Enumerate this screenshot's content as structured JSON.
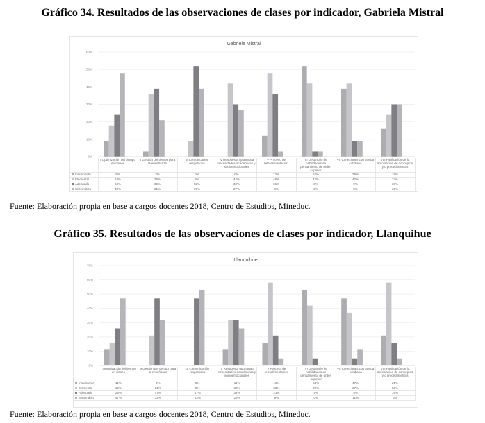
{
  "document": {
    "chart34_title": "Gráfico 34. Resultados de las observaciones de clases por indicador, Gabriela Mistral",
    "chart34_source": "Fuente: Elaboración propia en base a cargos docentes 2018, Centro de Estudios, Mineduc.",
    "chart35_title": "Gráfico 35. Resultados de las observaciones de clases por indicador, Llanquihue",
    "chart35_source": "Fuente: Elaboración propia en base a cargos docentes 2018, Centro de Estudios, Mineduc."
  },
  "chart_data": [
    {
      "type": "bar",
      "title": "Gabriela Mistral",
      "ylim": [
        0,
        60
      ],
      "yticks": [
        "0%",
        "10%",
        "20%",
        "30%",
        "40%",
        "50%",
        "60%"
      ],
      "grid": true,
      "legend": "data-table",
      "categories": [
        "I Optimización del tiempo en clases",
        "II Gestión del tiempo para la enseñanza",
        "III Comunicación respetuosa",
        "IV Respuesta oportuna a necesidades académicas y socioemocionales",
        "V Proceso de retroalimentación",
        "VI Desarrollo de habilidades de pensamiento de orden superior",
        "VII Conexiones con la vida cotidiana",
        "VIII Facilitación de la apropiación de conceptos y/o procedimientos"
      ],
      "series": [
        {
          "name": "Insuficiente",
          "color": "#adadb1",
          "values": [
            9,
            3,
            0,
            0,
            12,
            52,
            39,
            16
          ]
        },
        {
          "name": "Elemental",
          "color": "#c6c6ca",
          "values": [
            18,
            36,
            9,
            42,
            48,
            42,
            42,
            24
          ]
        },
        {
          "name": "Adecuado",
          "color": "#7f7f83",
          "values": [
            24,
            39,
            52,
            30,
            36,
            3,
            9,
            30
          ]
        },
        {
          "name": "Sistemático",
          "color": "#b5b5b9",
          "values": [
            48,
            21,
            39,
            27,
            3,
            3,
            9,
            30
          ]
        }
      ]
    },
    {
      "type": "bar",
      "title": "Llanquihue",
      "ylim": [
        0,
        70
      ],
      "yticks": [
        "0%",
        "10%",
        "20%",
        "30%",
        "40%",
        "50%",
        "60%",
        "70%"
      ],
      "grid": true,
      "legend": "data-table",
      "categories": [
        "I Optimización del tiempo en clases",
        "II Gestión del tiempo para la enseñanza",
        "III Comunicación respetuosa",
        "IV Respuesta oportuna a necesidades académicas y socioemocionales",
        "V Proceso de retroalimentación",
        "VI Desarrollo de habilidades de pensamiento de orden superior",
        "VII Conexiones con la vida cotidiana",
        "VIII Facilitación de la apropiación de conceptos y/o procedimientos"
      ],
      "series": [
        {
          "name": "Insuficiente",
          "color": "#adadb1",
          "values": [
            11,
            0,
            0,
            11,
            16,
            53,
            47,
            21
          ]
        },
        {
          "name": "Elemental",
          "color": "#c6c6ca",
          "values": [
            16,
            21,
            0,
            32,
            58,
            42,
            37,
            58
          ]
        },
        {
          "name": "Adecuado",
          "color": "#7f7f83",
          "values": [
            26,
            47,
            47,
            32,
            21,
            5,
            5,
            16
          ]
        },
        {
          "name": "Sistemático",
          "color": "#b5b5b9",
          "values": [
            47,
            32,
            53,
            26,
            5,
            0,
            11,
            5
          ]
        }
      ]
    }
  ]
}
